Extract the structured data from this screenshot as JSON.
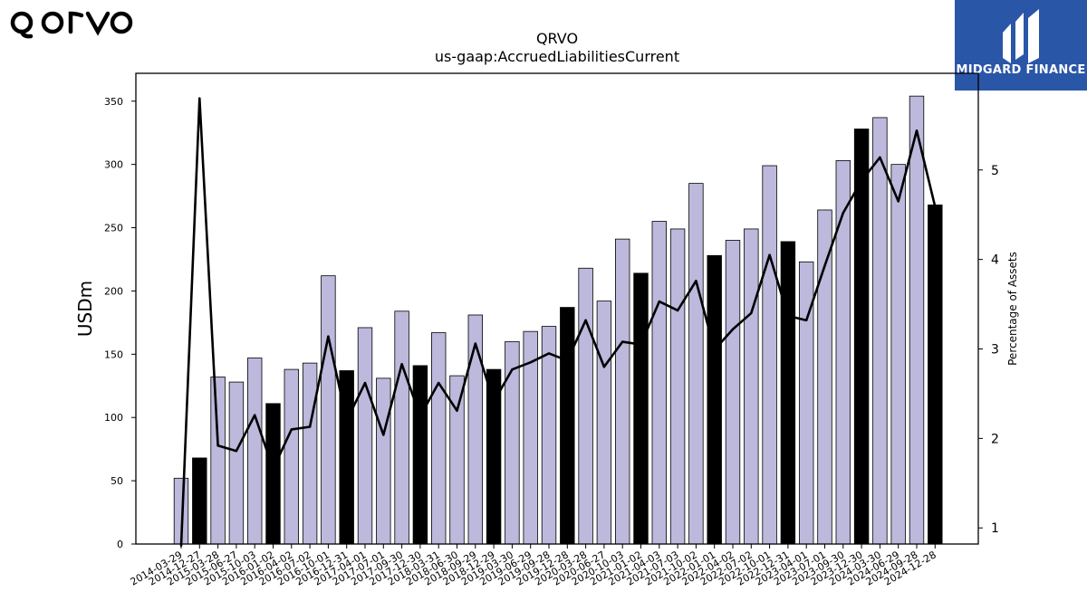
{
  "colors": {
    "bar_light": "#bcb9dc",
    "bar_dark": "#000000",
    "line": "#000000",
    "brand_bg": "#2a56a8"
  },
  "logos": {
    "company": "qorvo",
    "brand": "MIDGARD FINANCE"
  },
  "chart_data": {
    "type": "bar",
    "title": "QRVO",
    "subtitle": "us-gaap:AccruedLiabilitiesCurrent",
    "xlabel": "",
    "ylabel": "USDm",
    "y2label": "Percentage of Assets",
    "ylim": [
      0,
      372
    ],
    "y2lim": [
      0.82,
      6.08
    ],
    "yticks": [
      0,
      50,
      100,
      150,
      200,
      250,
      300,
      350
    ],
    "y2ticks": [
      1,
      2,
      3,
      4,
      5
    ],
    "grid": false,
    "legend": "none",
    "categories": [
      "2014-03-29",
      "2014-12-27",
      "2015-03-28",
      "2015-06-27",
      "2015-10-03",
      "2016-01-02",
      "2016-04-02",
      "2016-07-02",
      "2016-10-01",
      "2016-12-31",
      "2017-04-01",
      "2017-07-01",
      "2017-09-30",
      "2017-12-30",
      "2018-03-31",
      "2018-06-30",
      "2018-09-29",
      "2018-12-29",
      "2019-03-30",
      "2019-06-29",
      "2019-09-28",
      "2019-12-28",
      "2020-03-28",
      "2020-06-27",
      "2020-10-03",
      "2021-01-02",
      "2021-04-03",
      "2021-07-03",
      "2021-10-02",
      "2022-01-01",
      "2022-04-02",
      "2022-07-02",
      "2022-10-01",
      "2022-12-31",
      "2023-04-01",
      "2023-07-01",
      "2023-09-30",
      "2023-12-30",
      "2024-03-30",
      "2024-06-29",
      "2024-09-28",
      "2024-12-28"
    ],
    "series": [
      {
        "type": "bar",
        "values": [
          52,
          68,
          132,
          128,
          147,
          111,
          138,
          143,
          212,
          137,
          171,
          131,
          184,
          141,
          167,
          133,
          181,
          138,
          160,
          168,
          172,
          187,
          218,
          192,
          241,
          214,
          255,
          249,
          285,
          228,
          240,
          249,
          299,
          239,
          223,
          264,
          303,
          328,
          337,
          300,
          354,
          268
        ],
        "highlighted": [
          false,
          true,
          false,
          false,
          false,
          true,
          false,
          false,
          false,
          true,
          false,
          false,
          false,
          true,
          false,
          false,
          false,
          true,
          false,
          false,
          false,
          true,
          false,
          false,
          false,
          true,
          false,
          false,
          false,
          true,
          false,
          false,
          false,
          true,
          false,
          false,
          false,
          true,
          false,
          false,
          false,
          true
        ]
      },
      {
        "type": "line",
        "axis": "right",
        "values": [
          0.8,
          5.8,
          1.92,
          1.86,
          2.26,
          1.66,
          2.1,
          2.13,
          3.14,
          2.2,
          2.62,
          2.04,
          2.83,
          2.25,
          2.62,
          2.31,
          3.06,
          2.41,
          2.77,
          2.85,
          2.95,
          2.87,
          3.32,
          2.8,
          3.08,
          3.05,
          3.53,
          3.43,
          3.76,
          2.99,
          3.22,
          3.4,
          4.05,
          3.37,
          3.32,
          3.93,
          4.52,
          4.88,
          5.14,
          4.65,
          5.44,
          4.59
        ]
      }
    ]
  }
}
